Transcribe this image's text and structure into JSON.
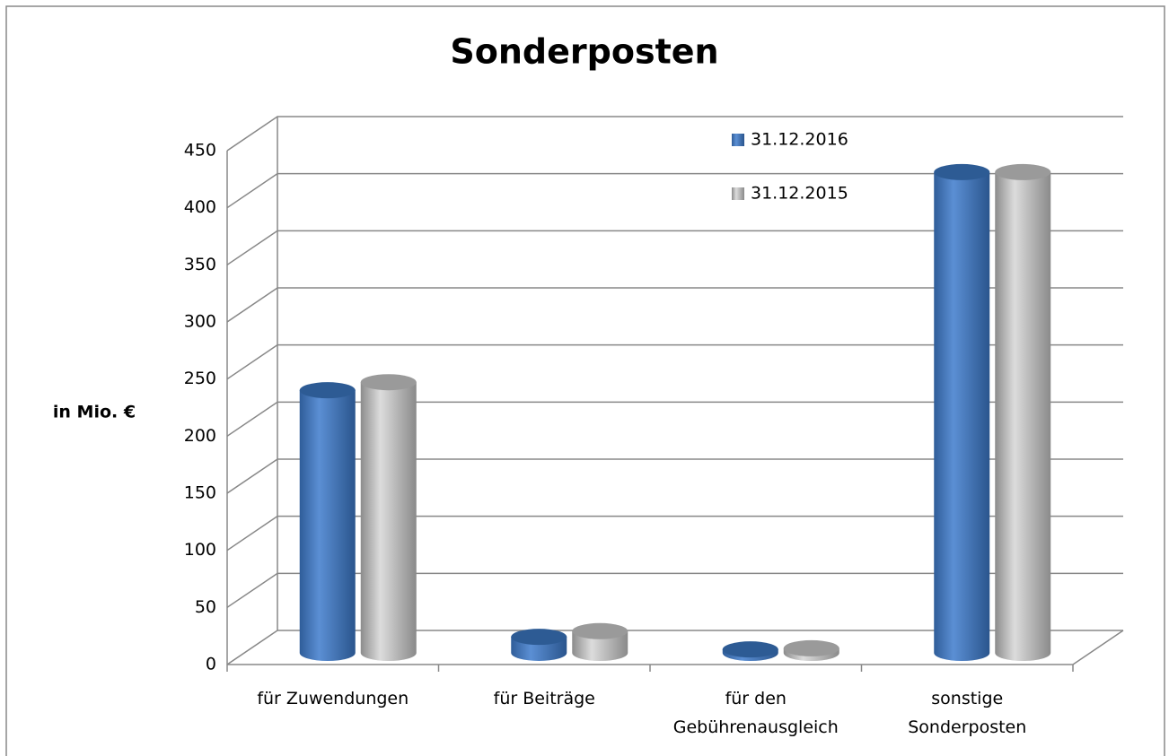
{
  "chart_data": {
    "type": "bar3d",
    "title": "Sonderposten",
    "y_label": "in Mio. €",
    "categories": [
      "für Zuwendungen",
      "für Beiträge",
      "für den\nGebührenausgleich",
      "sonstige\nSonderposten"
    ],
    "series": [
      {
        "name": "31.12.2016",
        "color": "#4a7ebb",
        "values": [
          230,
          14,
          3,
          421
        ]
      },
      {
        "name": "31.12.2015",
        "color": "#b8b8b8",
        "values": [
          237,
          19,
          4,
          421
        ]
      }
    ],
    "ylim": [
      0,
      450
    ],
    "yticks": [
      0,
      50,
      100,
      150,
      200,
      250,
      300,
      350,
      400,
      450
    ],
    "grid": true
  }
}
